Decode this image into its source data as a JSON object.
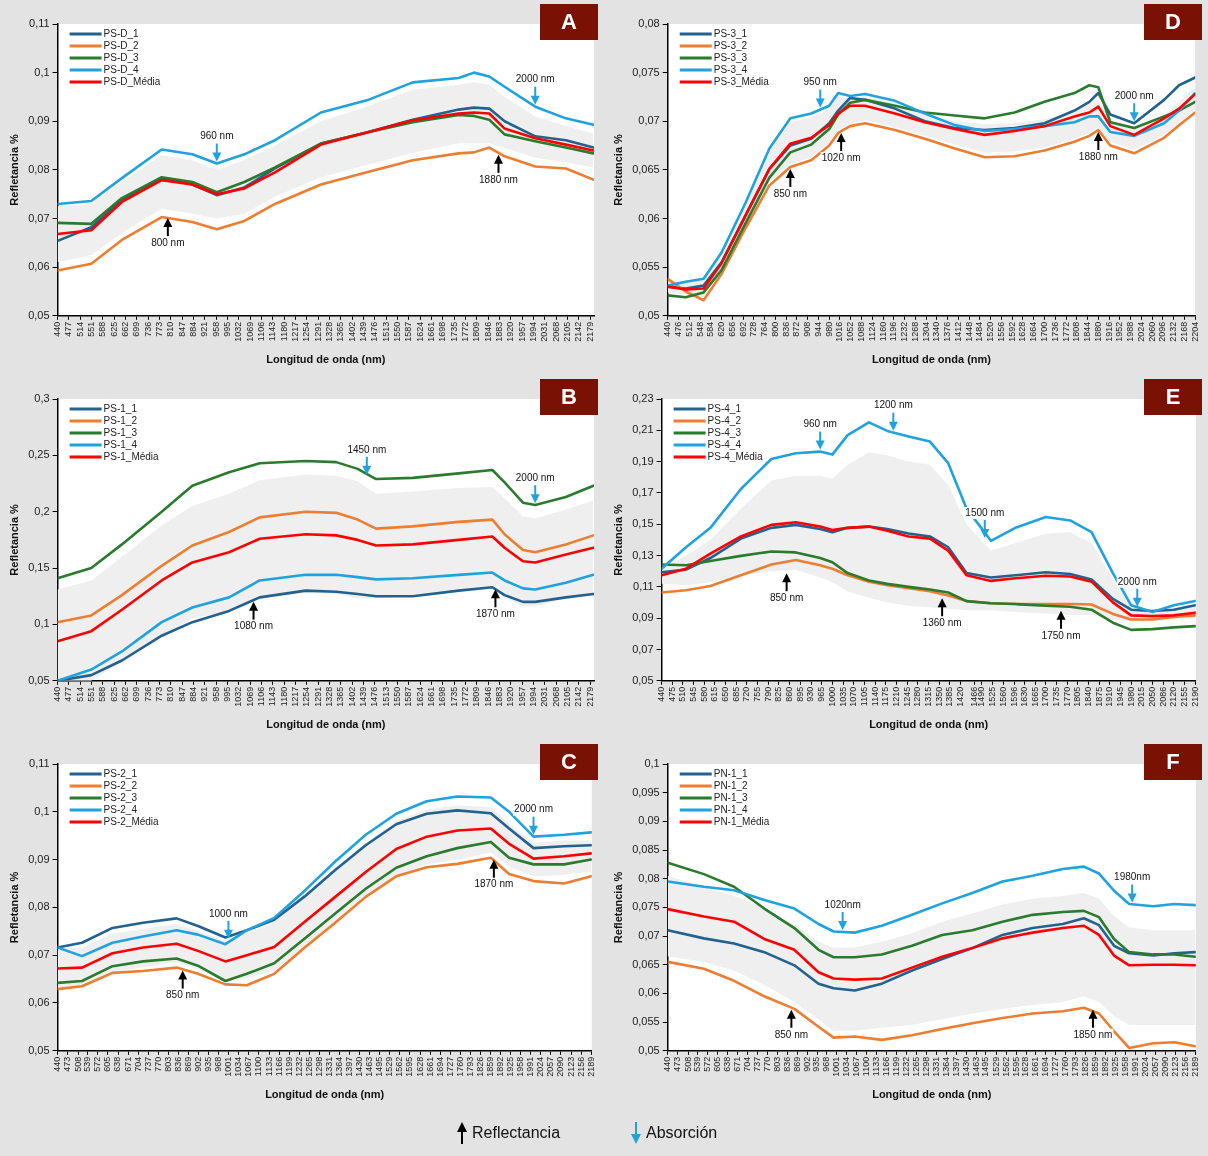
{
  "chart_data": [
    {
      "type": "line",
      "title": "A",
      "xlabel": "Longitud de onda (nm)",
      "ylabel": "Refletancia %",
      "legend": "top left",
      "marker": "none",
      "line_style": "solid",
      "x": [
        440,
        550,
        650,
        780,
        880,
        960,
        1050,
        1150,
        1300,
        1450,
        1600,
        1750,
        1800,
        1850,
        1900,
        2000,
        2100,
        2190
      ],
      "xlim": [
        440,
        2192
      ],
      "xticks": [
        440,
        477,
        514,
        551,
        588,
        625,
        662,
        699,
        736,
        773,
        810,
        847,
        884,
        921,
        958,
        995,
        1032,
        1069,
        1106,
        1143,
        1180,
        1217,
        1254,
        1291,
        1328,
        1365,
        1402,
        1439,
        1476,
        1513,
        1550,
        1587,
        1624,
        1661,
        1698,
        1735,
        1772,
        1809,
        1846,
        1883,
        1920,
        1957,
        1994,
        2031,
        2068,
        2105,
        2142,
        2179
      ],
      "ylim": [
        0.05,
        0.11
      ],
      "yticks": [
        {
          "value": 0.05,
          "label": "0,05"
        },
        {
          "value": 0.06,
          "label": "0,06"
        },
        {
          "value": 0.07,
          "label": "0,07"
        },
        {
          "value": 0.08,
          "label": "0,08"
        },
        {
          "value": 0.09,
          "label": "0,09"
        },
        {
          "value": 0.1,
          "label": "0,1"
        },
        {
          "value": 0.11,
          "label": "0,11"
        }
      ],
      "series": [
        {
          "name": "PS-D_1",
          "color": "#23628f",
          "values": [
            0.0654,
            0.0682,
            0.0738,
            0.0783,
            0.077,
            0.0748,
            0.0764,
            0.0803,
            0.0854,
            0.0877,
            0.0903,
            0.0924,
            0.0928,
            0.0926,
            0.09,
            0.0869,
            0.0861,
            0.0846
          ]
        },
        {
          "name": "PS-D_2",
          "color": "#ed7d31",
          "values": [
            0.0593,
            0.0607,
            0.0656,
            0.0703,
            0.0693,
            0.0678,
            0.0695,
            0.073,
            0.077,
            0.0795,
            0.082,
            0.0834,
            0.0836,
            0.0846,
            0.0828,
            0.0807,
            0.0803,
            0.078
          ]
        },
        {
          "name": "PS-D_3",
          "color": "#2a7b2e",
          "values": [
            0.0691,
            0.0689,
            0.0742,
            0.0785,
            0.0775,
            0.0754,
            0.0775,
            0.0805,
            0.0854,
            0.0877,
            0.0898,
            0.0913,
            0.0911,
            0.0903,
            0.0873,
            0.0859,
            0.0846,
            0.0834
          ]
        },
        {
          "name": "PS-D_4",
          "color": "#1fa2de",
          "values": [
            0.073,
            0.0736,
            0.0783,
            0.0842,
            0.0832,
            0.0813,
            0.0832,
            0.0861,
            0.0918,
            0.0943,
            0.098,
            0.0989,
            0.1,
            0.0992,
            0.0971,
            0.093,
            0.0906,
            0.0893
          ]
        },
        {
          "name": "PS-D_Média",
          "color": "#ff0000",
          "values": [
            0.0668,
            0.0676,
            0.0734,
            0.0779,
            0.077,
            0.075,
            0.0762,
            0.0795,
            0.0852,
            0.0877,
            0.0902,
            0.0916,
            0.0918,
            0.0916,
            0.0885,
            0.0865,
            0.0852,
            0.084
          ],
          "lower": [
            0.061,
            0.0625,
            0.067,
            0.072,
            0.071,
            0.07,
            0.071,
            0.0745,
            0.0785,
            0.081,
            0.0835,
            0.0855,
            0.0855,
            0.0855,
            0.0845,
            0.0825,
            0.0815,
            0.0805
          ],
          "upper": [
            0.0725,
            0.073,
            0.0775,
            0.083,
            0.082,
            0.08,
            0.082,
            0.085,
            0.09,
            0.093,
            0.0965,
            0.0975,
            0.098,
            0.0975,
            0.095,
            0.091,
            0.089,
            0.0875
          ]
        }
      ],
      "annotations": [
        {
          "text": "800 nm",
          "x": 800,
          "y": 0.0705
        },
        {
          "text": "960 nm",
          "x": 960,
          "y": 0.0813
        },
        {
          "text": "1880 nm",
          "x": 1880,
          "y": 0.0835
        },
        {
          "text": "2000 nm",
          "x": 2000,
          "y": 0.093
        }
      ]
    },
    {
      "type": "line",
      "title": "D",
      "xlabel": "Longitud de onda (nm)",
      "ylabel": "Refletancia %",
      "legend": "top left",
      "marker": "none",
      "line_style": "solid",
      "x": [
        440,
        500,
        560,
        620,
        700,
        780,
        850,
        920,
        980,
        1010,
        1050,
        1100,
        1200,
        1300,
        1400,
        1500,
        1600,
        1700,
        1800,
        1850,
        1880,
        1920,
        2000,
        2100,
        2150,
        2204
      ],
      "xlim": [
        440,
        2204
      ],
      "xticks": [
        440,
        476,
        512,
        548,
        584,
        620,
        656,
        692,
        728,
        764,
        800,
        836,
        872,
        908,
        944,
        980,
        1016,
        1052,
        1088,
        1124,
        1160,
        1196,
        1232,
        1268,
        1304,
        1340,
        1376,
        1412,
        1448,
        1484,
        1520,
        1556,
        1592,
        1628,
        1664,
        1700,
        1736,
        1772,
        1808,
        1844,
        1880,
        1916,
        1952,
        1988,
        2024,
        2060,
        2096,
        2132,
        2168,
        2204
      ],
      "ylim": [
        0.05,
        0.08
      ],
      "yticks": [
        {
          "value": 0.05,
          "label": "0,05"
        },
        {
          "value": 0.055,
          "label": "0,055"
        },
        {
          "value": 0.06,
          "label": "0,06"
        },
        {
          "value": 0.065,
          "label": "0,065"
        },
        {
          "value": 0.07,
          "label": "0,07"
        },
        {
          "value": 0.075,
          "label": "0,075"
        },
        {
          "value": 0.08,
          "label": "0,08"
        }
      ],
      "series": [
        {
          "name": "PS-3_1",
          "color": "#23628f",
          "values": [
            0.053,
            0.0528,
            0.0531,
            0.0555,
            0.0603,
            0.0651,
            0.0675,
            0.0682,
            0.0698,
            0.0711,
            0.0724,
            0.0722,
            0.0713,
            0.07,
            0.0693,
            0.0691,
            0.0693,
            0.0698,
            0.0711,
            0.072,
            0.0729,
            0.0707,
            0.0698,
            0.0722,
            0.0737,
            0.0745
          ]
        },
        {
          "name": "PS-3_2",
          "color": "#ed7d31",
          "values": [
            0.0538,
            0.0525,
            0.0516,
            0.0543,
            0.059,
            0.0634,
            0.0653,
            0.066,
            0.0675,
            0.0688,
            0.0695,
            0.0698,
            0.0691,
            0.0682,
            0.0672,
            0.0663,
            0.0664,
            0.067,
            0.0679,
            0.0685,
            0.0691,
            0.0675,
            0.0667,
            0.0683,
            0.0696,
            0.0709
          ]
        },
        {
          "name": "PS-3_3",
          "color": "#2a7b2e",
          "values": [
            0.0521,
            0.0519,
            0.0524,
            0.0547,
            0.0595,
            0.0642,
            0.0668,
            0.0676,
            0.0692,
            0.0707,
            0.0719,
            0.0722,
            0.0716,
            0.0709,
            0.0706,
            0.0703,
            0.0709,
            0.072,
            0.0729,
            0.0737,
            0.0735,
            0.0699,
            0.0693,
            0.0705,
            0.0711,
            0.072
          ]
        },
        {
          "name": "PS-3_4",
          "color": "#1fa2de",
          "values": [
            0.0531,
            0.0535,
            0.0538,
            0.0565,
            0.0616,
            0.0672,
            0.0703,
            0.0708,
            0.0716,
            0.0729,
            0.0726,
            0.0728,
            0.0721,
            0.0708,
            0.0696,
            0.069,
            0.0692,
            0.0695,
            0.0699,
            0.0705,
            0.0705,
            0.0689,
            0.0685,
            0.0698,
            0.0711,
            0.0729
          ]
        },
        {
          "name": "PS-3_Média",
          "color": "#ff0000",
          "values": [
            0.053,
            0.0527,
            0.0528,
            0.0554,
            0.0603,
            0.0651,
            0.0677,
            0.0683,
            0.0696,
            0.0708,
            0.0716,
            0.0716,
            0.0708,
            0.0699,
            0.0692,
            0.0686,
            0.069,
            0.0695,
            0.0705,
            0.0709,
            0.0715,
            0.0695,
            0.0686,
            0.0703,
            0.0713,
            0.0728
          ],
          "lower": [
            0.0524,
            0.0522,
            0.0519,
            0.0546,
            0.0593,
            0.0637,
            0.0656,
            0.0663,
            0.0678,
            0.0691,
            0.0698,
            0.0701,
            0.0694,
            0.0685,
            0.0676,
            0.0668,
            0.0669,
            0.0673,
            0.0682,
            0.0688,
            0.0694,
            0.0679,
            0.0671,
            0.0686,
            0.0698,
            0.0712
          ],
          "upper": [
            0.0536,
            0.0534,
            0.0537,
            0.0562,
            0.0612,
            0.0668,
            0.0699,
            0.0704,
            0.0712,
            0.0725,
            0.0724,
            0.0725,
            0.0719,
            0.0707,
            0.07,
            0.0697,
            0.0698,
            0.0702,
            0.071,
            0.0718,
            0.0722,
            0.0702,
            0.0694,
            0.0706,
            0.072,
            0.0735
          ]
        }
      ],
      "annotations": [
        {
          "text": "950 nm",
          "x": 950,
          "y": 0.0712
        },
        {
          "text": "850 nm",
          "x": 850,
          "y": 0.0653
        },
        {
          "text": "1020 nm",
          "x": 1020,
          "y": 0.069
        },
        {
          "text": "1880 nm",
          "x": 1880,
          "y": 0.0691
        },
        {
          "text": "2000 nm",
          "x": 2000,
          "y": 0.0698
        }
      ]
    },
    {
      "type": "line",
      "title": "B",
      "xlabel": "Longitud de onda (nm)",
      "ylabel": "Refletancia %",
      "legend": "top left",
      "marker": "none",
      "line_style": "solid",
      "x": [
        440,
        550,
        650,
        780,
        880,
        1000,
        1100,
        1250,
        1350,
        1420,
        1480,
        1600,
        1750,
        1860,
        1900,
        1960,
        2000,
        2100,
        2190
      ],
      "xlim": [
        440,
        2192
      ],
      "xticks": [
        440,
        477,
        514,
        551,
        588,
        625,
        662,
        699,
        736,
        773,
        810,
        847,
        884,
        921,
        958,
        995,
        1032,
        1069,
        1106,
        1143,
        1180,
        1217,
        1254,
        1291,
        1328,
        1365,
        1402,
        1439,
        1476,
        1513,
        1550,
        1587,
        1624,
        1661,
        1698,
        1735,
        1772,
        1809,
        1846,
        1883,
        1920,
        1957,
        1994,
        2031,
        2068,
        2105,
        2142,
        2179
      ],
      "ylim": [
        0.05,
        0.3
      ],
      "yticks": [
        {
          "value": 0.05,
          "label": "0,05"
        },
        {
          "value": 0.1,
          "label": "0,1"
        },
        {
          "value": 0.15,
          "label": "0,15"
        },
        {
          "value": 0.2,
          "label": "0,2"
        },
        {
          "value": 0.25,
          "label": "0,25"
        },
        {
          "value": 0.3,
          "label": "0,3"
        }
      ],
      "series": [
        {
          "name": "PS-1_1",
          "color": "#23628f",
          "values": [
            0.05,
            0.055,
            0.068,
            0.09,
            0.102,
            0.112,
            0.124,
            0.13,
            0.129,
            0.127,
            0.125,
            0.125,
            0.13,
            0.133,
            0.126,
            0.12,
            0.12,
            0.124,
            0.127
          ]
        },
        {
          "name": "PS-1_2",
          "color": "#ed7d31",
          "values": [
            0.102,
            0.108,
            0.126,
            0.152,
            0.17,
            0.182,
            0.195,
            0.2,
            0.199,
            0.193,
            0.185,
            0.187,
            0.191,
            0.193,
            0.18,
            0.166,
            0.164,
            0.171,
            0.179
          ]
        },
        {
          "name": "PS-1_3",
          "color": "#2a7b2e",
          "values": [
            0.141,
            0.15,
            0.171,
            0.2,
            0.223,
            0.235,
            0.243,
            0.245,
            0.244,
            0.238,
            0.229,
            0.23,
            0.234,
            0.237,
            0.226,
            0.208,
            0.206,
            0.213,
            0.223
          ]
        },
        {
          "name": "PS-1_4",
          "color": "#1fa2de",
          "values": [
            0.05,
            0.06,
            0.076,
            0.102,
            0.115,
            0.124,
            0.139,
            0.144,
            0.144,
            0.142,
            0.14,
            0.141,
            0.144,
            0.146,
            0.139,
            0.132,
            0.131,
            0.137,
            0.144
          ]
        },
        {
          "name": "PS-1_Média",
          "color": "#ff0000",
          "values": [
            0.085,
            0.094,
            0.113,
            0.139,
            0.155,
            0.164,
            0.176,
            0.18,
            0.179,
            0.175,
            0.17,
            0.171,
            0.175,
            0.178,
            0.168,
            0.156,
            0.155,
            0.162,
            0.168
          ],
          "lower": [
            0.05,
            0.05,
            0.067,
            0.09,
            0.105,
            0.112,
            0.123,
            0.128,
            0.127,
            0.123,
            0.123,
            0.125,
            0.129,
            0.133,
            0.124,
            0.116,
            0.116,
            0.123,
            0.127
          ],
          "upper": [
            0.131,
            0.139,
            0.16,
            0.188,
            0.205,
            0.216,
            0.228,
            0.233,
            0.232,
            0.227,
            0.216,
            0.218,
            0.221,
            0.222,
            0.212,
            0.196,
            0.194,
            0.202,
            0.21
          ]
        }
      ],
      "annotations": [
        {
          "text": "1450 nm",
          "x": 1450,
          "y": 0.231
        },
        {
          "text": "2000 nm",
          "x": 2000,
          "y": 0.2058
        },
        {
          "text": "1080 nm",
          "x": 1080,
          "y": 0.122
        },
        {
          "text": "1870 nm",
          "x": 1870,
          "y": 0.133
        }
      ]
    },
    {
      "type": "line",
      "title": "E",
      "xlabel": "Longitud de onda (nm)",
      "ylabel": "Refletancia %",
      "legend": "top left",
      "marker": "none",
      "line_style": "solid",
      "x": [
        440,
        520,
        600,
        700,
        800,
        880,
        960,
        1000,
        1050,
        1120,
        1180,
        1250,
        1320,
        1380,
        1440,
        1520,
        1600,
        1700,
        1780,
        1850,
        1920,
        1980,
        2050,
        2120,
        2190
      ],
      "xlim": [
        440,
        2192
      ],
      "xticks": [
        440,
        475,
        510,
        545,
        580,
        615,
        650,
        685,
        720,
        755,
        790,
        825,
        860,
        895,
        930,
        965,
        1000,
        1035,
        1070,
        1105,
        1140,
        1175,
        1210,
        1245,
        1280,
        1315,
        1350,
        1385,
        1420,
        1466,
        1490,
        1525,
        1560,
        1596,
        1630,
        1665,
        1700,
        1735,
        1770,
        1805,
        1840,
        1875,
        1910,
        1945,
        1980,
        2015,
        2050,
        2086,
        2120,
        2155,
        2190
      ],
      "ylim": [
        0.05,
        0.23
      ],
      "yticks": [
        {
          "value": 0.05,
          "label": "0,05"
        },
        {
          "value": 0.07,
          "label": "0,07"
        },
        {
          "value": 0.09,
          "label": "0,09"
        },
        {
          "value": 0.11,
          "label": "0,11"
        },
        {
          "value": 0.13,
          "label": "0,13"
        },
        {
          "value": 0.15,
          "label": "0,15"
        },
        {
          "value": 0.17,
          "label": "0,17"
        },
        {
          "value": 0.19,
          "label": "0,19"
        },
        {
          "value": 0.21,
          "label": "0,21"
        },
        {
          "value": 0.23,
          "label": "0,23"
        }
      ],
      "series": [
        {
          "name": "PS-4_1",
          "color": "#23628f",
          "values": [
            0.1193,
            0.121,
            0.1284,
            0.1408,
            0.1477,
            0.1496,
            0.1469,
            0.1449,
            0.1477,
            0.1485,
            0.1469,
            0.1441,
            0.1422,
            0.1353,
            0.1188,
            0.116,
            0.1174,
            0.1193,
            0.1182,
            0.1147,
            0.1023,
            0.0954,
            0.0946,
            0.0954,
            0.0982
          ]
        },
        {
          "name": "PS-4_2",
          "color": "#ed7d31",
          "values": [
            0.1064,
            0.1078,
            0.1105,
            0.1174,
            0.1243,
            0.1271,
            0.1238,
            0.1216,
            0.1174,
            0.1133,
            0.1111,
            0.1092,
            0.1072,
            0.1045,
            0.1009,
            0.0995,
            0.099,
            0.099,
            0.099,
            0.0987,
            0.0927,
            0.0891,
            0.0891,
            0.0907,
            0.0918
          ]
        },
        {
          "name": "PS-4_3",
          "color": "#2a7b2e",
          "values": [
            0.1243,
            0.1238,
            0.1265,
            0.1298,
            0.1326,
            0.132,
            0.1284,
            0.1257,
            0.1188,
            0.1141,
            0.1119,
            0.11,
            0.1083,
            0.1064,
            0.1009,
            0.0995,
            0.099,
            0.0979,
            0.0973,
            0.0954,
            0.0871,
            0.0825,
            0.083,
            0.0841,
            0.0849
          ]
        },
        {
          "name": "PS-4_4",
          "color": "#1fa2de",
          "values": [
            0.1216,
            0.1353,
            0.1477,
            0.1725,
            0.1917,
            0.1953,
            0.1964,
            0.1945,
            0.2069,
            0.2151,
            0.2096,
            0.2061,
            0.2028,
            0.189,
            0.1601,
            0.1394,
            0.1477,
            0.1546,
            0.1524,
            0.1449,
            0.1188,
            0.0982,
            0.094,
            0.0982,
            0.1009
          ]
        },
        {
          "name": "PS-4_Média",
          "color": "#ff0000",
          "values": [
            0.1174,
            0.1216,
            0.1312,
            0.1422,
            0.1496,
            0.1513,
            0.1485,
            0.1463,
            0.1477,
            0.1485,
            0.1458,
            0.1422,
            0.1408,
            0.1331,
            0.1174,
            0.1138,
            0.1155,
            0.1171,
            0.1166,
            0.1133,
            0.1001,
            0.0918,
            0.0913,
            0.0918,
            0.0935
          ],
          "lower": [
            0.112,
            0.111,
            0.113,
            0.117,
            0.12,
            0.121,
            0.116,
            0.113,
            0.107,
            0.103,
            0.1,
            0.098,
            0.097,
            0.096,
            0.095,
            0.095,
            0.094,
            0.093,
            0.092,
            0.092,
            0.089,
            0.088,
            0.088,
            0.089,
            0.09
          ],
          "upper": [
            0.121,
            0.13,
            0.14,
            0.16,
            0.178,
            0.181,
            0.181,
            0.179,
            0.188,
            0.196,
            0.194,
            0.19,
            0.188,
            0.175,
            0.15,
            0.133,
            0.138,
            0.144,
            0.145,
            0.138,
            0.115,
            0.097,
            0.094,
            0.096,
            0.098
          ]
        }
      ],
      "annotations": [
        {
          "text": "960 nm",
          "x": 960,
          "y": 0.1964
        },
        {
          "text": "1200 nm",
          "x": 1200,
          "y": 0.2085
        },
        {
          "text": "1500 nm",
          "x": 1500,
          "y": 0.14
        },
        {
          "text": "2000 nm",
          "x": 2000,
          "y": 0.096
        },
        {
          "text": "850 nm",
          "x": 850,
          "y": 0.12
        },
        {
          "text": "1360 nm",
          "x": 1360,
          "y": 0.104
        },
        {
          "text": "1750 nm",
          "x": 1750,
          "y": 0.096
        }
      ]
    },
    {
      "type": "line",
      "title": "C",
      "xlabel": "Longitud de onda (nm)",
      "ylabel": "Refletancia %",
      "legend": "top left",
      "marker": "none",
      "line_style": "solid",
      "x": [
        440,
        520,
        620,
        720,
        830,
        900,
        990,
        1060,
        1150,
        1250,
        1350,
        1450,
        1550,
        1650,
        1750,
        1860,
        1920,
        2000,
        2100,
        2189
      ],
      "xlim": [
        440,
        2191
      ],
      "xticks": [
        440,
        473,
        508,
        539,
        572,
        605,
        638,
        671,
        704,
        737,
        770,
        803,
        836,
        869,
        902,
        935,
        968,
        1001,
        1034,
        1067,
        1100,
        1133,
        1166,
        1199,
        1232,
        1265,
        1298,
        1331,
        1364,
        1397,
        1430,
        1463,
        1495,
        1529,
        1562,
        1595,
        1628,
        1661,
        1694,
        1727,
        1760,
        1793,
        1826,
        1859,
        1892,
        1925,
        1958,
        1991,
        2024,
        2057,
        2090,
        2123,
        2156,
        2189
      ],
      "ylim": [
        0.05,
        0.11
      ],
      "yticks": [
        {
          "value": 0.05,
          "label": "0,05"
        },
        {
          "value": 0.06,
          "label": "0,06"
        },
        {
          "value": 0.07,
          "label": "0,07"
        },
        {
          "value": 0.08,
          "label": "0,08"
        },
        {
          "value": 0.09,
          "label": "0,09"
        },
        {
          "value": 0.1,
          "label": "0,1"
        },
        {
          "value": 0.11,
          "label": "0,11"
        }
      ],
      "series": [
        {
          "name": "PS-2_1",
          "color": "#23628f",
          "values": [
            0.0716,
            0.0726,
            0.0757,
            0.0768,
            0.0777,
            0.0761,
            0.0737,
            0.0752,
            0.0774,
            0.0823,
            0.0878,
            0.093,
            0.0974,
            0.0996,
            0.1003,
            0.0997,
            0.0965,
            0.0924,
            0.0928,
            0.093
          ]
        },
        {
          "name": "PS-2_2",
          "color": "#ed7d31",
          "values": [
            0.0629,
            0.0635,
            0.0663,
            0.0667,
            0.0674,
            0.0661,
            0.0639,
            0.0637,
            0.0661,
            0.0716,
            0.0768,
            0.0822,
            0.0865,
            0.0884,
            0.0891,
            0.0904,
            0.087,
            0.0855,
            0.085,
            0.0865
          ]
        },
        {
          "name": "PS-2_3",
          "color": "#2a7b2e",
          "values": [
            0.0642,
            0.0646,
            0.0677,
            0.0687,
            0.0693,
            0.0678,
            0.0646,
            0.0661,
            0.0683,
            0.0735,
            0.0787,
            0.0839,
            0.0883,
            0.0907,
            0.0924,
            0.0937,
            0.0904,
            0.089,
            0.089,
            0.09
          ]
        },
        {
          "name": "PS-2_4",
          "color": "#1fa2de",
          "values": [
            0.0716,
            0.0698,
            0.0726,
            0.0739,
            0.0752,
            0.0743,
            0.0723,
            0.0752,
            0.0778,
            0.0835,
            0.0896,
            0.0952,
            0.0996,
            0.1022,
            0.1032,
            0.103,
            0.1,
            0.0948,
            0.0952,
            0.0957
          ]
        },
        {
          "name": "PS-2_Média",
          "color": "#ff0000",
          "values": [
            0.0672,
            0.0674,
            0.0704,
            0.0716,
            0.0724,
            0.0709,
            0.0687,
            0.07,
            0.0717,
            0.077,
            0.0822,
            0.0874,
            0.0922,
            0.0948,
            0.0961,
            0.0965,
            0.0933,
            0.0902,
            0.0907,
            0.0913
          ],
          "lower": [
            0.063,
            0.0635,
            0.0665,
            0.0675,
            0.0685,
            0.067,
            0.0645,
            0.0652,
            0.0668,
            0.0718,
            0.0768,
            0.082,
            0.0865,
            0.089,
            0.09,
            0.0915,
            0.0885,
            0.0865,
            0.0868,
            0.0875
          ],
          "upper": [
            0.0715,
            0.0715,
            0.0745,
            0.0755,
            0.0765,
            0.075,
            0.073,
            0.0745,
            0.077,
            0.0825,
            0.0882,
            0.0935,
            0.098,
            0.1005,
            0.1013,
            0.101,
            0.0975,
            0.0935,
            0.094,
            0.094
          ]
        }
      ],
      "annotations": [
        {
          "text": "1000 nm",
          "x": 1000,
          "y": 0.073
        },
        {
          "text": "2000 nm",
          "x": 2000,
          "y": 0.0948
        },
        {
          "text": "850 nm",
          "x": 850,
          "y": 0.0672
        },
        {
          "text": "1870 nm",
          "x": 1870,
          "y": 0.0904
        }
      ]
    },
    {
      "type": "line",
      "title": "F",
      "xlabel": "Longitud de onda (nm)",
      "ylabel": "Refletancia %",
      "legend": "top left",
      "marker": "none",
      "line_style": "solid",
      "x": [
        440,
        560,
        660,
        760,
        860,
        940,
        990,
        1060,
        1150,
        1250,
        1350,
        1450,
        1550,
        1650,
        1750,
        1820,
        1870,
        1920,
        1970,
        2050,
        2120,
        2189
      ],
      "xlim": [
        440,
        2191
      ],
      "xticks": [
        440,
        473,
        508,
        539,
        572,
        605,
        638,
        671,
        704,
        737,
        770,
        803,
        836,
        869,
        902,
        935,
        968,
        1001,
        1034,
        1067,
        1100,
        1133,
        1166,
        1199,
        1232,
        1265,
        1298,
        1331,
        1364,
        1397,
        1430,
        1463,
        1495,
        1529,
        1562,
        1595,
        1628,
        1661,
        1694,
        1727,
        1760,
        1793,
        1826,
        1859,
        1892,
        1925,
        1958,
        1991,
        2024,
        2057,
        2090,
        2123,
        2156,
        2189
      ],
      "ylim": [
        0.05,
        0.1
      ],
      "yticks": [
        {
          "value": 0.05,
          "label": "0,05"
        },
        {
          "value": 0.055,
          "label": "0,055"
        },
        {
          "value": 0.06,
          "label": "0,06"
        },
        {
          "value": 0.065,
          "label": "0,065"
        },
        {
          "value": 0.07,
          "label": "0,07"
        },
        {
          "value": 0.075,
          "label": "0,075"
        },
        {
          "value": 0.08,
          "label": "0,08"
        },
        {
          "value": 0.085,
          "label": "0,085"
        },
        {
          "value": 0.09,
          "label": "0,09"
        },
        {
          "value": 0.095,
          "label": "0,095"
        },
        {
          "value": 0.1,
          "label": "0,1"
        }
      ],
      "series": [
        {
          "name": "PN-1_1",
          "color": "#23628f",
          "values": [
            0.071,
            0.0696,
            0.0687,
            0.0672,
            0.0649,
            0.0617,
            0.0609,
            0.0605,
            0.0617,
            0.064,
            0.066,
            0.0679,
            0.0702,
            0.0714,
            0.0721,
            0.0731,
            0.0719,
            0.0683,
            0.067,
            0.0666,
            0.067,
            0.0672
          ]
        },
        {
          "name": "PN-1_2",
          "color": "#ed7d31",
          "values": [
            0.0655,
            0.0643,
            0.0622,
            0.0595,
            0.0573,
            0.0542,
            0.0523,
            0.0525,
            0.0519,
            0.0527,
            0.0538,
            0.0548,
            0.0557,
            0.0565,
            0.0569,
            0.0575,
            0.0565,
            0.0534,
            0.0505,
            0.0513,
            0.0515,
            0.0508
          ]
        },
        {
          "name": "PN-1_3",
          "color": "#2a7b2e",
          "values": [
            0.0828,
            0.0808,
            0.0786,
            0.0748,
            0.0714,
            0.0676,
            0.0663,
            0.0663,
            0.0668,
            0.0683,
            0.0702,
            0.071,
            0.0725,
            0.0737,
            0.0742,
            0.0744,
            0.0733,
            0.0695,
            0.0672,
            0.0668,
            0.0668,
            0.0664
          ]
        },
        {
          "name": "PN-1_4",
          "color": "#1fa2de",
          "values": [
            0.0795,
            0.0786,
            0.078,
            0.0763,
            0.0748,
            0.0721,
            0.0708,
            0.0706,
            0.0718,
            0.0737,
            0.0757,
            0.0775,
            0.0795,
            0.0805,
            0.0817,
            0.0821,
            0.0809,
            0.0779,
            0.0756,
            0.0752,
            0.0756,
            0.0754
          ]
        },
        {
          "name": "PN-1_Média",
          "color": "#ff0000",
          "values": [
            0.0747,
            0.0734,
            0.0725,
            0.0695,
            0.0676,
            0.0637,
            0.0626,
            0.0624,
            0.0626,
            0.0645,
            0.0664,
            0.0679,
            0.0696,
            0.0706,
            0.0714,
            0.0718,
            0.0702,
            0.0666,
            0.0649,
            0.065,
            0.065,
            0.0649
          ],
          "lower": [
            0.0665,
            0.0655,
            0.064,
            0.0615,
            0.0585,
            0.0555,
            0.0535,
            0.0535,
            0.054,
            0.0545,
            0.0555,
            0.0565,
            0.0573,
            0.058,
            0.0585,
            0.0595,
            0.0585,
            0.056,
            0.0545,
            0.0545,
            0.0545,
            0.0545
          ],
          "upper": [
            0.0805,
            0.0785,
            0.077,
            0.075,
            0.072,
            0.069,
            0.068,
            0.068,
            0.069,
            0.0705,
            0.0725,
            0.074,
            0.0755,
            0.0765,
            0.077,
            0.0775,
            0.0765,
            0.0735,
            0.0715,
            0.071,
            0.071,
            0.071
          ]
        }
      ],
      "annotations": [
        {
          "text": "1020nm",
          "x": 1020,
          "y": 0.0707
        },
        {
          "text": "1980nm",
          "x": 1980,
          "y": 0.0755
        },
        {
          "text": "850 nm",
          "x": 850,
          "y": 0.0575
        },
        {
          "text": "1850 nm",
          "x": 1850,
          "y": 0.0575
        },
        "Reflectancia",
        "Absorción"
      ]
    }
  ]
}
